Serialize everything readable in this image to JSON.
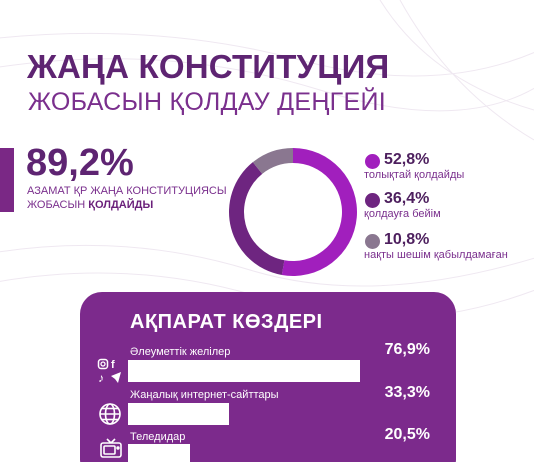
{
  "header": {
    "title_line1": "ЖАҢА КОНСТИТУЦИЯ",
    "title_line2": "ЖОБАСЫН ҚОЛДАУ ДЕҢГЕЙІ"
  },
  "support": {
    "value": "89,2%",
    "caption_line1": "АЗАМАТ ҚР ЖАҢА КОНСТИТУЦИЯСЫ",
    "caption_line2_prefix": "ЖОБАСЫН ",
    "caption_line2_bold": "ҚОЛДАЙДЫ"
  },
  "chart_data": [
    {
      "type": "pie",
      "donut": true,
      "categories": [
        "толықтай қолдайды",
        "қолдауға бейім",
        "нақты шешім қабылдамаған"
      ],
      "values": [
        52.8,
        36.4,
        10.8
      ],
      "value_labels": [
        "52,8%",
        "36,4%",
        "10,8%"
      ],
      "colors": [
        "#a11fbd",
        "#6e2580",
        "#8a7790"
      ],
      "legend_position": "right"
    },
    {
      "type": "bar",
      "orientation": "horizontal",
      "title": "АҚПАРАТ КӨЗДЕРІ",
      "categories": [
        "Әлеуметтік желілер",
        "Жаңалық интернет-сайттары",
        "Теледидар"
      ],
      "values": [
        76.9,
        33.3,
        20.5
      ],
      "value_labels": [
        "76,9%",
        "33,3%",
        "20,5%"
      ],
      "icons": [
        "social-media-icon",
        "globe-icon",
        "tv-icon"
      ],
      "xlim": [
        0,
        100
      ]
    }
  ],
  "colors": {
    "brand_dark": "#5e2472",
    "brand": "#7c2a8c",
    "accent": "#a11fbd",
    "muted": "#8a7790"
  }
}
